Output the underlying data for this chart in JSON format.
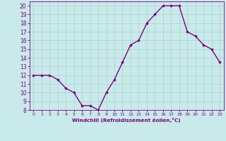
{
  "x": [
    0,
    1,
    2,
    3,
    4,
    5,
    6,
    7,
    8,
    9,
    10,
    11,
    12,
    13,
    14,
    15,
    16,
    17,
    18,
    19,
    20,
    21,
    22,
    23
  ],
  "y": [
    12,
    12,
    12,
    11.5,
    10.5,
    10,
    8.5,
    8.5,
    8,
    10,
    11.5,
    13.5,
    15.5,
    16,
    18,
    19,
    20,
    20,
    20,
    17,
    16.5,
    15.5,
    15,
    13.5
  ],
  "line_color": "#800080",
  "marker": "D",
  "marker_size": 1.8,
  "line_width": 1.0,
  "background_color": "#c8eaea",
  "grid_color": "#b0d4d4",
  "xlabel": "Windchill (Refroidissement éolien,°C)",
  "xlabel_color": "#800080",
  "tick_color": "#800080",
  "ylim": [
    8,
    20.5
  ],
  "xlim": [
    -0.5,
    23.5
  ],
  "yticks": [
    8,
    9,
    10,
    11,
    12,
    13,
    14,
    15,
    16,
    17,
    18,
    19,
    20
  ],
  "xticks": [
    0,
    1,
    2,
    3,
    4,
    5,
    6,
    7,
    8,
    9,
    10,
    11,
    12,
    13,
    14,
    15,
    16,
    17,
    18,
    19,
    20,
    21,
    22,
    23
  ]
}
